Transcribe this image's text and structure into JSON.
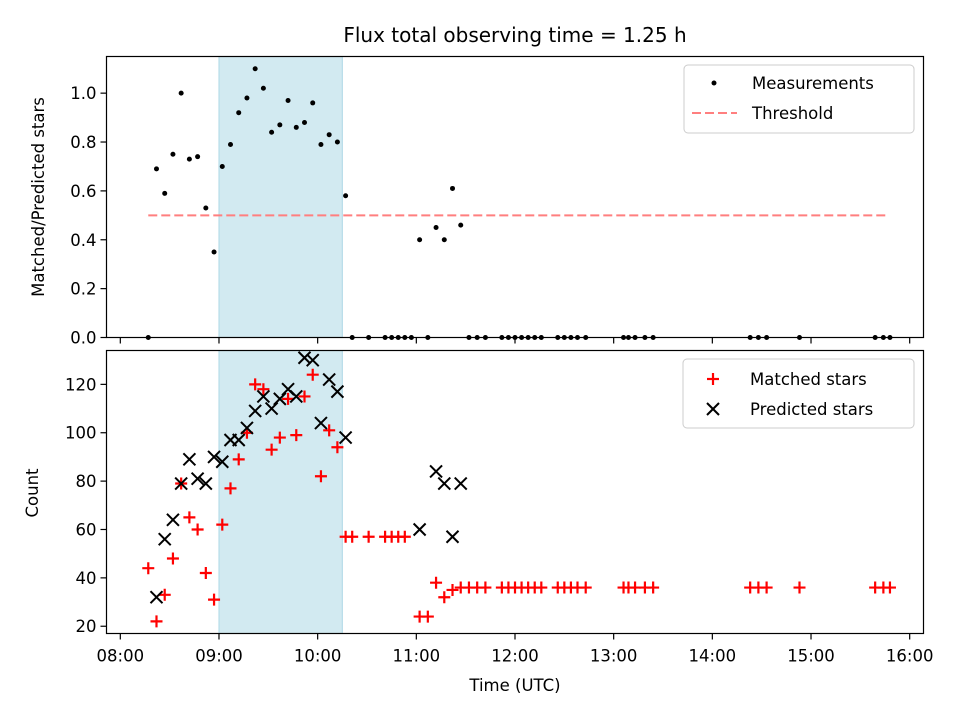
{
  "title": "Flux total observing time = 1.25 h",
  "colors": {
    "measurement": "#000000",
    "threshold": "#ff7f7f",
    "matched": "#ff0000",
    "predicted": "#000000",
    "highlight": "#add8e6"
  },
  "chart_data": [
    {
      "type": "scatter",
      "panel": "top",
      "ylabel": "Matched/Predicted stars",
      "xlim": [
        "08:00",
        "16:00"
      ],
      "ylim": [
        0,
        1.15
      ],
      "yticks": [
        "0.0",
        "0.2",
        "0.4",
        "0.6",
        "0.8",
        "1.0"
      ],
      "highlight_span": [
        "09:00",
        "10:15"
      ],
      "legend": {
        "position": "top-right",
        "entries": [
          "Measurements",
          "Threshold"
        ]
      },
      "threshold": {
        "name": "Threshold",
        "value": 0.5,
        "x": [
          "08:17",
          "15:47"
        ],
        "style": "dashed"
      },
      "series": [
        {
          "name": "Measurements",
          "points": [
            [
              "08:17",
              0.0
            ],
            [
              "08:22",
              0.69
            ],
            [
              "08:27",
              0.59
            ],
            [
              "08:32",
              0.75
            ],
            [
              "08:37",
              1.0
            ],
            [
              "08:42",
              0.73
            ],
            [
              "08:47",
              0.74
            ],
            [
              "08:52",
              0.53
            ],
            [
              "08:57",
              0.35
            ],
            [
              "09:02",
              0.7
            ],
            [
              "09:07",
              0.79
            ],
            [
              "09:12",
              0.92
            ],
            [
              "09:17",
              0.98
            ],
            [
              "09:22",
              1.1
            ],
            [
              "09:27",
              1.02
            ],
            [
              "09:32",
              0.84
            ],
            [
              "09:37",
              0.87
            ],
            [
              "09:42",
              0.97
            ],
            [
              "09:47",
              0.86
            ],
            [
              "09:52",
              0.88
            ],
            [
              "09:57",
              0.96
            ],
            [
              "10:02",
              0.79
            ],
            [
              "10:07",
              0.83
            ],
            [
              "10:12",
              0.8
            ],
            [
              "10:17",
              0.58
            ],
            [
              "10:21",
              0.0
            ],
            [
              "10:31",
              0.0
            ],
            [
              "10:41",
              0.0
            ],
            [
              "10:45",
              0.0
            ],
            [
              "10:49",
              0.0
            ],
            [
              "10:53",
              0.0
            ],
            [
              "10:57",
              0.0
            ],
            [
              "11:02",
              0.4
            ],
            [
              "11:07",
              0.0
            ],
            [
              "11:12",
              0.45
            ],
            [
              "11:17",
              0.4
            ],
            [
              "11:22",
              0.61
            ],
            [
              "11:27",
              0.46
            ],
            [
              "11:32",
              0.0
            ],
            [
              "11:37",
              0.0
            ],
            [
              "11:42",
              0.0
            ],
            [
              "11:52",
              0.0
            ],
            [
              "11:56",
              0.0
            ],
            [
              "12:00",
              0.0
            ],
            [
              "12:04",
              0.0
            ],
            [
              "12:08",
              0.0
            ],
            [
              "12:12",
              0.0
            ],
            [
              "12:16",
              0.0
            ],
            [
              "12:26",
              0.0
            ],
            [
              "12:30",
              0.0
            ],
            [
              "12:34",
              0.0
            ],
            [
              "12:38",
              0.0
            ],
            [
              "12:43",
              0.0
            ],
            [
              "13:06",
              0.0
            ],
            [
              "13:09",
              0.0
            ],
            [
              "13:13",
              0.0
            ],
            [
              "13:19",
              0.0
            ],
            [
              "13:24",
              0.0
            ],
            [
              "14:23",
              0.0
            ],
            [
              "14:28",
              0.0
            ],
            [
              "14:33",
              0.0
            ],
            [
              "14:53",
              0.0
            ],
            [
              "15:39",
              0.0
            ],
            [
              "15:44",
              0.0
            ],
            [
              "15:48",
              0.0
            ]
          ]
        }
      ]
    },
    {
      "type": "scatter",
      "panel": "bottom",
      "xlabel": "Time (UTC)",
      "ylabel": "Count",
      "xlim": [
        "08:00",
        "16:00"
      ],
      "xticks": [
        "08:00",
        "09:00",
        "10:00",
        "11:00",
        "12:00",
        "13:00",
        "14:00",
        "15:00",
        "16:00"
      ],
      "ylim": [
        17,
        134
      ],
      "yticks": [
        "20",
        "40",
        "60",
        "80",
        "100",
        "120"
      ],
      "highlight_span": [
        "09:00",
        "10:15"
      ],
      "legend": {
        "position": "top-right",
        "entries": [
          "Matched stars",
          "Predicted stars"
        ]
      },
      "series": [
        {
          "name": "Matched stars",
          "marker": "plus",
          "points": [
            [
              "08:17",
              44
            ],
            [
              "08:22",
              22
            ],
            [
              "08:27",
              33
            ],
            [
              "08:32",
              48
            ],
            [
              "08:37",
              79
            ],
            [
              "08:42",
              65
            ],
            [
              "08:47",
              60
            ],
            [
              "08:52",
              42
            ],
            [
              "08:57",
              31
            ],
            [
              "09:02",
              62
            ],
            [
              "09:07",
              77
            ],
            [
              "09:12",
              89
            ],
            [
              "09:17",
              100
            ],
            [
              "09:22",
              120
            ],
            [
              "09:27",
              118
            ],
            [
              "09:32",
              93
            ],
            [
              "09:37",
              98
            ],
            [
              "09:42",
              114
            ],
            [
              "09:47",
              99
            ],
            [
              "09:52",
              115
            ],
            [
              "09:57",
              124
            ],
            [
              "10:02",
              82
            ],
            [
              "10:07",
              101
            ],
            [
              "10:12",
              94
            ],
            [
              "10:17",
              57
            ],
            [
              "10:21",
              57
            ],
            [
              "10:31",
              57
            ],
            [
              "10:41",
              57
            ],
            [
              "10:45",
              57
            ],
            [
              "10:49",
              57
            ],
            [
              "10:53",
              57
            ],
            [
              "11:02",
              24
            ],
            [
              "11:07",
              24
            ],
            [
              "11:12",
              38
            ],
            [
              "11:17",
              32
            ],
            [
              "11:22",
              35
            ],
            [
              "11:27",
              36
            ],
            [
              "11:32",
              36
            ],
            [
              "11:37",
              36
            ],
            [
              "11:42",
              36
            ],
            [
              "11:52",
              36
            ],
            [
              "11:56",
              36
            ],
            [
              "12:00",
              36
            ],
            [
              "12:04",
              36
            ],
            [
              "12:08",
              36
            ],
            [
              "12:12",
              36
            ],
            [
              "12:16",
              36
            ],
            [
              "12:26",
              36
            ],
            [
              "12:30",
              36
            ],
            [
              "12:34",
              36
            ],
            [
              "12:38",
              36
            ],
            [
              "12:43",
              36
            ],
            [
              "13:06",
              36
            ],
            [
              "13:09",
              36
            ],
            [
              "13:13",
              36
            ],
            [
              "13:19",
              36
            ],
            [
              "13:24",
              36
            ],
            [
              "14:23",
              36
            ],
            [
              "14:28",
              36
            ],
            [
              "14:33",
              36
            ],
            [
              "14:53",
              36
            ],
            [
              "15:39",
              36
            ],
            [
              "15:44",
              36
            ],
            [
              "15:48",
              36
            ]
          ]
        },
        {
          "name": "Predicted stars",
          "marker": "x",
          "points": [
            [
              "08:22",
              32
            ],
            [
              "08:27",
              56
            ],
            [
              "08:32",
              64
            ],
            [
              "08:37",
              79
            ],
            [
              "08:42",
              89
            ],
            [
              "08:47",
              81
            ],
            [
              "08:52",
              79
            ],
            [
              "08:57",
              90
            ],
            [
              "09:02",
              88
            ],
            [
              "09:07",
              97
            ],
            [
              "09:12",
              97
            ],
            [
              "09:17",
              102
            ],
            [
              "09:22",
              109
            ],
            [
              "09:27",
              115
            ],
            [
              "09:32",
              110
            ],
            [
              "09:37",
              114
            ],
            [
              "09:42",
              118
            ],
            [
              "09:47",
              115
            ],
            [
              "09:52",
              131
            ],
            [
              "09:57",
              130
            ],
            [
              "10:02",
              104
            ],
            [
              "10:07",
              122
            ],
            [
              "10:12",
              117
            ],
            [
              "10:17",
              98
            ],
            [
              "11:02",
              60
            ],
            [
              "11:12",
              84
            ],
            [
              "11:17",
              79
            ],
            [
              "11:22",
              57
            ],
            [
              "11:27",
              79
            ]
          ]
        }
      ]
    }
  ]
}
